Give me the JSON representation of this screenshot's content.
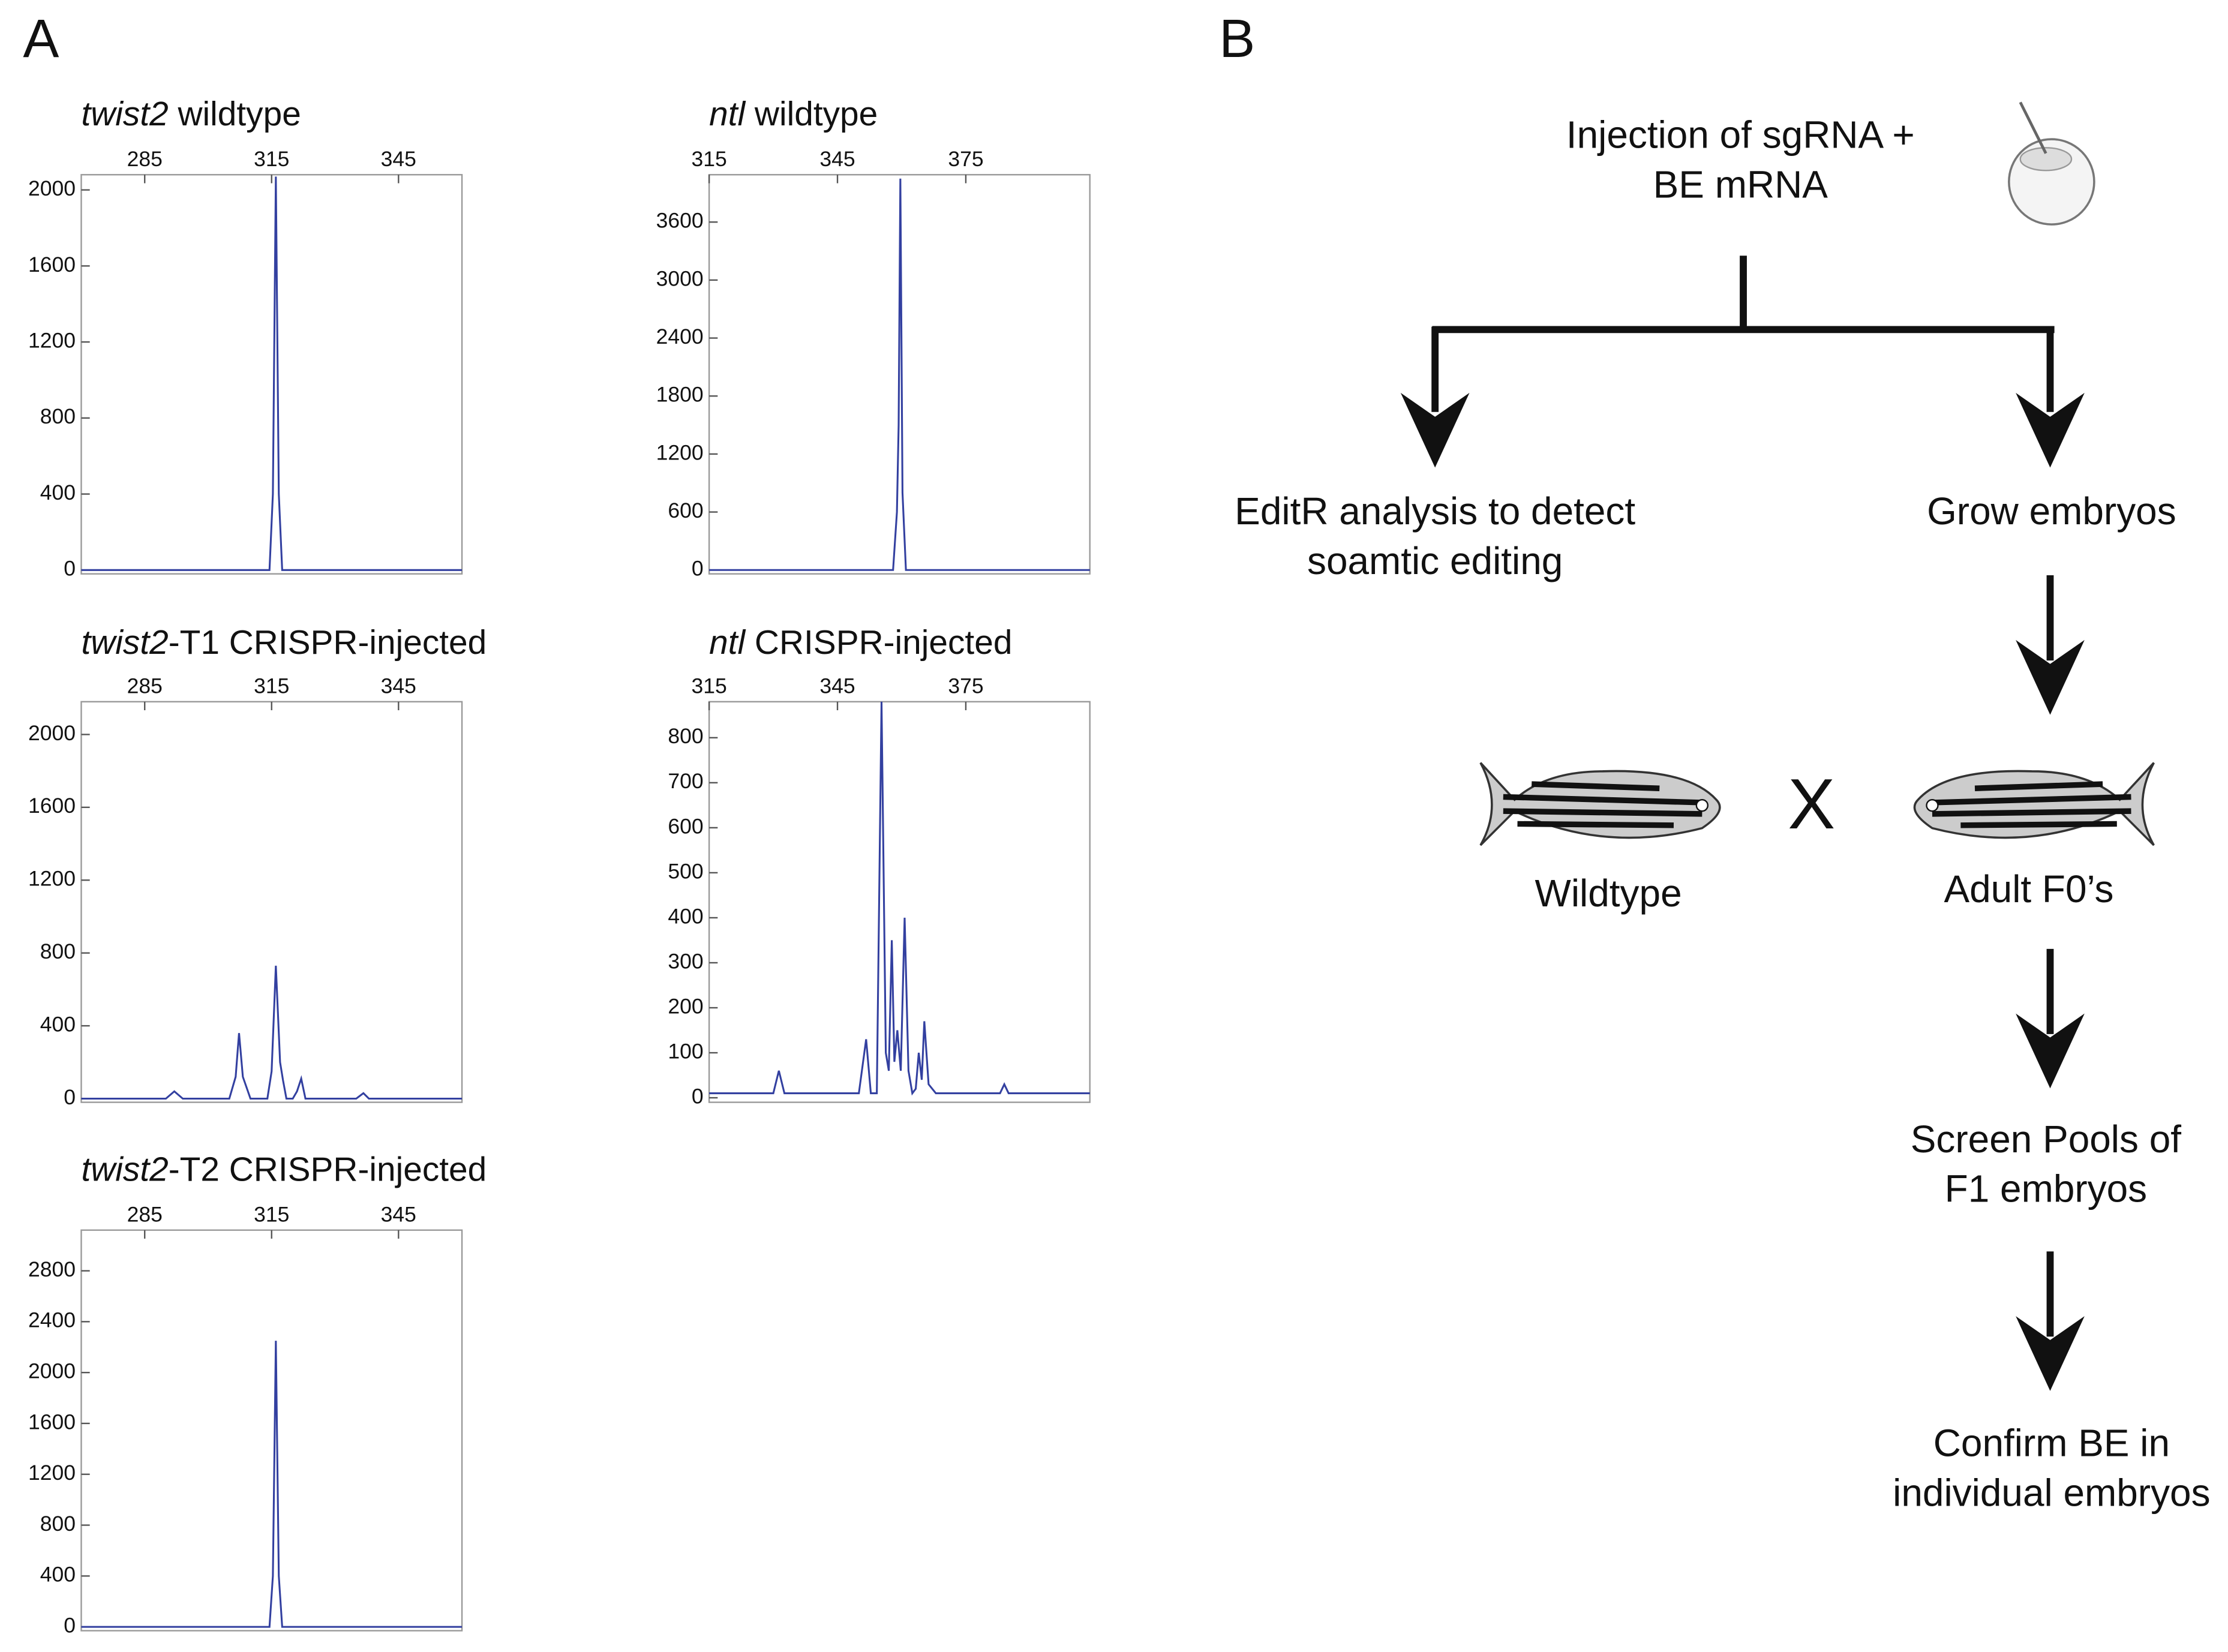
{
  "panel_labels": [
    "A",
    "B"
  ],
  "chart_data": [
    {
      "type": "line",
      "title": {
        "italic": "twist2",
        "text": " wildtype"
      },
      "color": "#3340a0",
      "x": [
        270,
        314.5,
        315.3,
        316,
        316.7,
        317.5,
        360
      ],
      "values": [
        0,
        0,
        400,
        2070,
        400,
        0,
        0
      ],
      "xlim": [
        270,
        360
      ],
      "ylim": [
        -20,
        2080
      ],
      "xticks": [
        285,
        315,
        345
      ],
      "yticks": [
        0,
        400,
        800,
        1200,
        1600,
        2000
      ]
    },
    {
      "type": "line",
      "title": {
        "italic": "ntl",
        "text": " wildtype"
      },
      "color": "#3340a0",
      "x": [
        315,
        358,
        358.9,
        359.3,
        359.7,
        360.2,
        361,
        404
      ],
      "values": [
        0,
        0,
        600,
        1500,
        4050,
        800,
        0,
        0
      ],
      "xlim": [
        315,
        404
      ],
      "ylim": [
        -40,
        4090
      ],
      "xticks": [
        315,
        345,
        375
      ],
      "yticks": [
        0,
        600,
        1200,
        1800,
        2400,
        3000,
        3600
      ]
    },
    {
      "type": "line",
      "title": {
        "italic": "twist2",
        "text": "-T1 CRISPR-injected"
      },
      "color": "#3340a0",
      "x": [
        270,
        290,
        292,
        294,
        305,
        306.5,
        307.3,
        308.2,
        310,
        314,
        315,
        316,
        317,
        317.7,
        318.5,
        320,
        321,
        322,
        323,
        330,
        335,
        336.7,
        338,
        360
      ],
      "values": [
        0,
        0,
        40,
        0,
        0,
        120,
        360,
        120,
        0,
        0,
        150,
        730,
        200,
        100,
        0,
        0,
        40,
        110,
        0,
        0,
        0,
        30,
        0,
        0
      ],
      "xlim": [
        270,
        360
      ],
      "ylim": [
        -20,
        2180
      ],
      "xticks": [
        285,
        315,
        345
      ],
      "yticks": [
        0,
        400,
        800,
        1200,
        1600,
        2000
      ]
    },
    {
      "type": "line",
      "title": {
        "italic": "ntl",
        "text": " CRISPR-injected"
      },
      "color": "#3340a0",
      "x": [
        315,
        330,
        331.3,
        332.6,
        350,
        351.7,
        352.8,
        354.2,
        355.3,
        356.3,
        357,
        357.7,
        358.3,
        359,
        359.8,
        360.7,
        361.6,
        362.5,
        363.3,
        364,
        364.7,
        365.3,
        366.3,
        368,
        383,
        384,
        385,
        404
      ],
      "values": [
        10,
        10,
        60,
        10,
        10,
        130,
        10,
        10,
        880,
        100,
        60,
        350,
        80,
        150,
        60,
        400,
        60,
        10,
        20,
        100,
        40,
        170,
        30,
        10,
        10,
        30,
        10,
        10
      ],
      "xlim": [
        315,
        404
      ],
      "ylim": [
        -10,
        880
      ],
      "xticks": [
        315,
        345,
        375
      ],
      "yticks": [
        0,
        100,
        200,
        300,
        400,
        500,
        600,
        700,
        800
      ]
    },
    {
      "type": "line",
      "title": {
        "italic": "twist2",
        "text": "-T2 CRISPR-injected"
      },
      "color": "#3340a0",
      "x": [
        270,
        314.5,
        315.3,
        316,
        316.7,
        317.5,
        360
      ],
      "values": [
        0,
        0,
        400,
        2250,
        400,
        0,
        0
      ],
      "xlim": [
        270,
        360
      ],
      "ylim": [
        -30,
        3120
      ],
      "xticks": [
        285,
        315,
        345
      ],
      "yticks": [
        0,
        400,
        800,
        1200,
        1600,
        2000,
        2400,
        2800
      ]
    }
  ],
  "flowchart": {
    "nodes": [
      {
        "lines": [
          "Injection of sgRNA +",
          "BE mRNA"
        ]
      },
      {
        "lines": [
          "EditR analysis to detect",
          "soamtic editing"
        ]
      },
      {
        "lines": [
          "Grow embryos"
        ]
      },
      {
        "lines": [
          "Wildtype"
        ]
      },
      {
        "lines": [
          "Adult F0’s"
        ]
      },
      {
        "lines": [
          "Screen Pools of",
          "F1 embryos"
        ]
      },
      {
        "lines": [
          "Confirm BE in",
          "individual embryos"
        ]
      }
    ],
    "cross": "X"
  }
}
